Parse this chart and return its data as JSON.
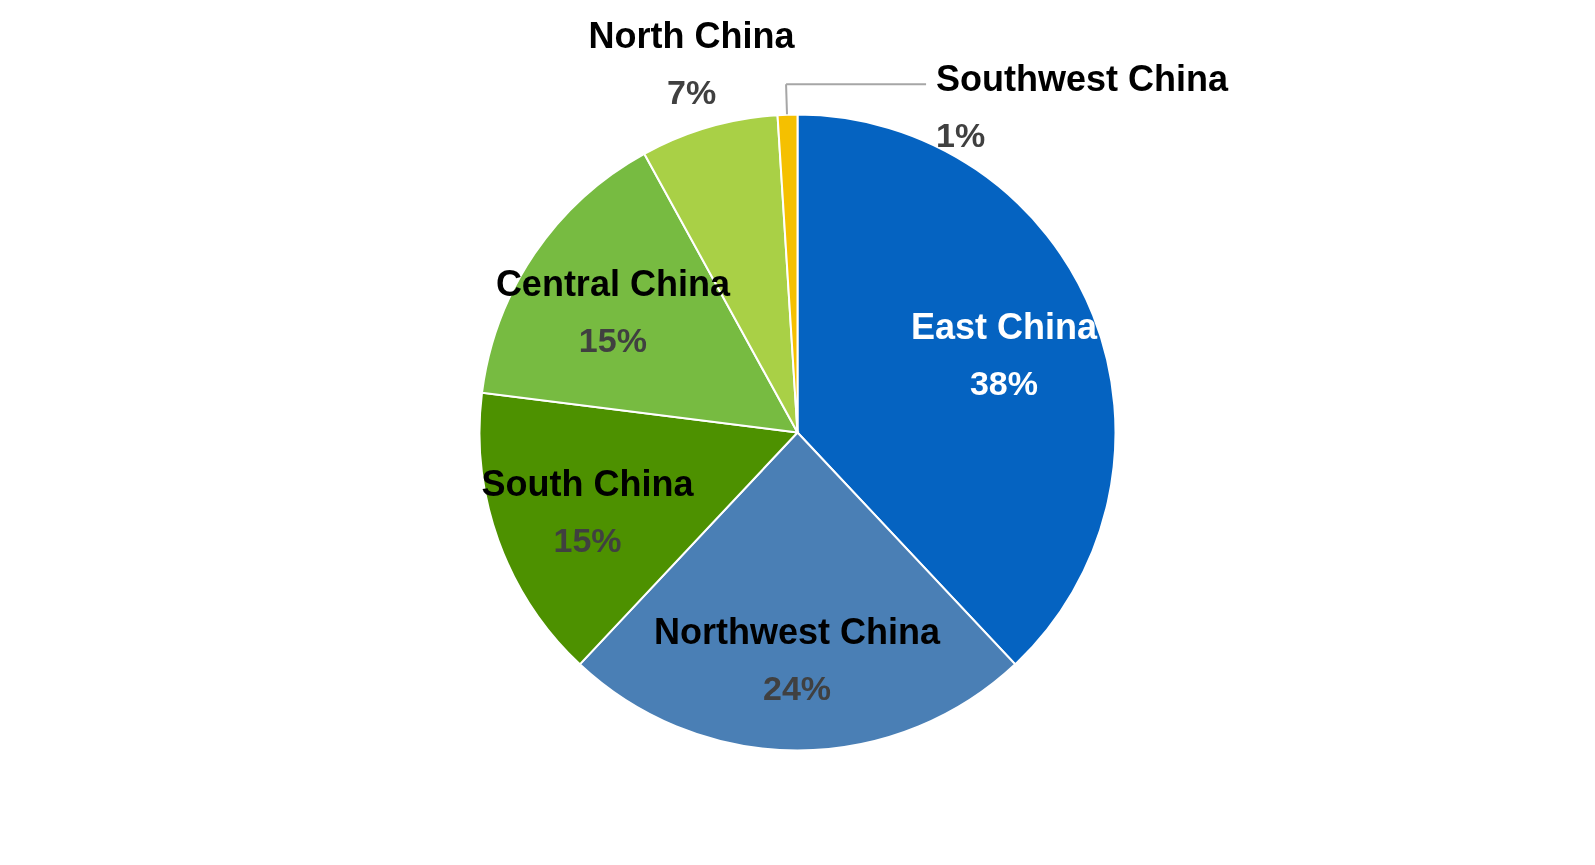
{
  "chart_data": {
    "type": "pie",
    "categories": [
      "East China",
      "Northwest China",
      "South China",
      "Central China",
      "North China",
      "Southwest China"
    ],
    "values": [
      38,
      24,
      15,
      15,
      7,
      1
    ],
    "value_labels": [
      "38%",
      "24%",
      "15%",
      "15%",
      "7%",
      "1%"
    ],
    "colors": [
      "#0563c1",
      "#4a7fb5",
      "#4d9100",
      "#77bb41",
      "#a9d046",
      "#f5c000"
    ]
  }
}
